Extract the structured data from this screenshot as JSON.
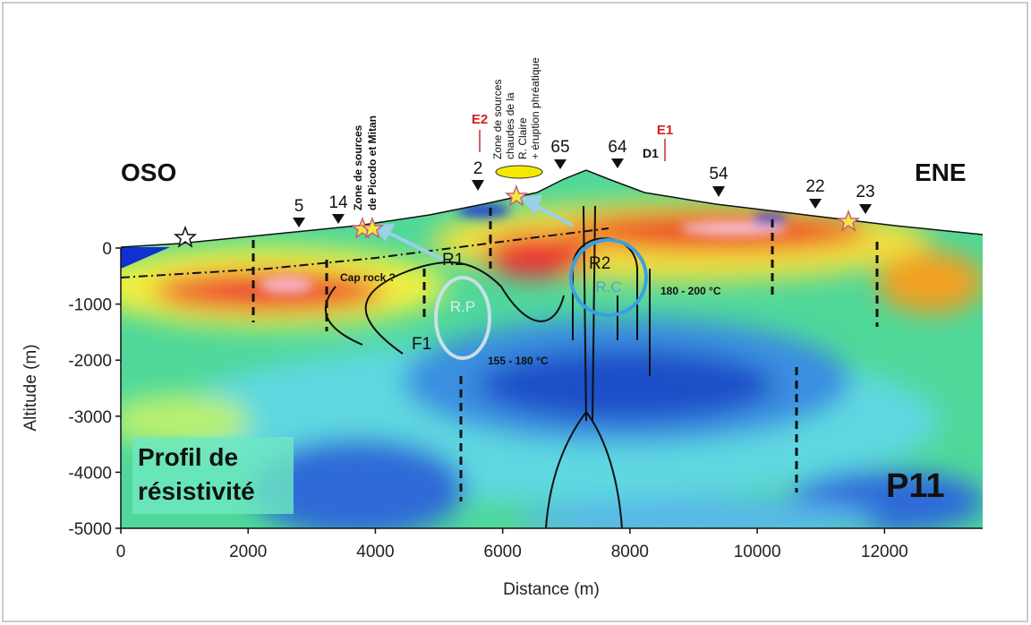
{
  "chart_data": {
    "type": "section",
    "xlabel": "Distance (m)",
    "ylabel": "Altitude (m)",
    "xlim": [
      0,
      13500
    ],
    "ylim": [
      -5000,
      0
    ],
    "xticks": [
      0,
      2000,
      4000,
      6000,
      8000,
      10000,
      12000
    ],
    "yticks": [
      0,
      -1000,
      -2000,
      -3000,
      -4000,
      -5000
    ],
    "west": "OSO",
    "east": "ENE",
    "stations": [
      "5",
      "14",
      "2",
      "65",
      "64",
      "54",
      "22",
      "23"
    ],
    "markers": {
      "e2": "E2",
      "e1": "E1",
      "d1": "D1",
      "r1": "R1",
      "r2": "R2",
      "rp": "R.P",
      "rc": "R.C",
      "f1": "F1",
      "caprock": "Cap rock ?"
    },
    "temperatures": [
      "180 - 200 °C",
      "155 - 180 °C"
    ],
    "zone_picodo": [
      "Zone de sources",
      "de Picodo et Mitan"
    ],
    "zone_claire": [
      "Zone de sources",
      "chaudes de la",
      "R. Claire",
      "+ éruption phréatique"
    ],
    "caption": [
      "Profil de",
      "résistivité"
    ],
    "profile": "P11"
  }
}
